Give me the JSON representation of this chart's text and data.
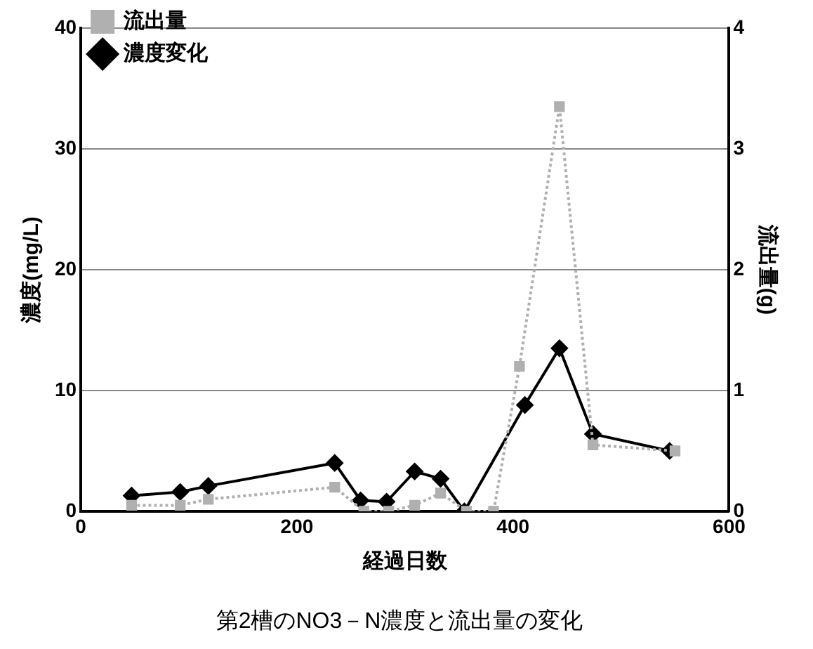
{
  "chart_data": {
    "type": "line",
    "title": "第2槽のNO3－N濃度と流出量の変化",
    "xlabel": "経過日数",
    "ylabel": "濃度(mg/L)",
    "y2label": "流出量(g)",
    "xlim": [
      0,
      600
    ],
    "xticks": [
      0,
      200,
      400,
      600
    ],
    "ylim": [
      0,
      40
    ],
    "yticks": [
      0,
      10,
      20,
      30,
      40
    ],
    "y2lim": [
      0,
      4
    ],
    "y2ticks": [
      0,
      1,
      2,
      3,
      4
    ],
    "grid": "y",
    "legend": "top left",
    "series": [
      {
        "name": "濃度変化",
        "color": "#000000",
        "marker": "diamond",
        "line_style": "solid",
        "x": [
          47,
          92,
          118,
          235,
          259,
          283,
          309,
          333,
          355,
          411,
          443,
          474,
          545
        ],
        "values": [
          1.3,
          1.6,
          2.1,
          4.0,
          0.9,
          0.8,
          3.3,
          2.7,
          0,
          8.8,
          13.5,
          6.4,
          5.0
        ]
      },
      {
        "name": "流出量",
        "color": "#b0b0b0",
        "marker": "square",
        "line_style": "dotted",
        "axis": "y2",
        "x": [
          47,
          92,
          118,
          235,
          262,
          285,
          309,
          333,
          357,
          382,
          406,
          443,
          474,
          550
        ],
        "values": [
          0.05,
          0.05,
          0.1,
          0.2,
          0,
          0,
          0.05,
          0.15,
          0,
          0,
          1.2,
          3.35,
          0.55,
          0.5
        ]
      }
    ]
  }
}
